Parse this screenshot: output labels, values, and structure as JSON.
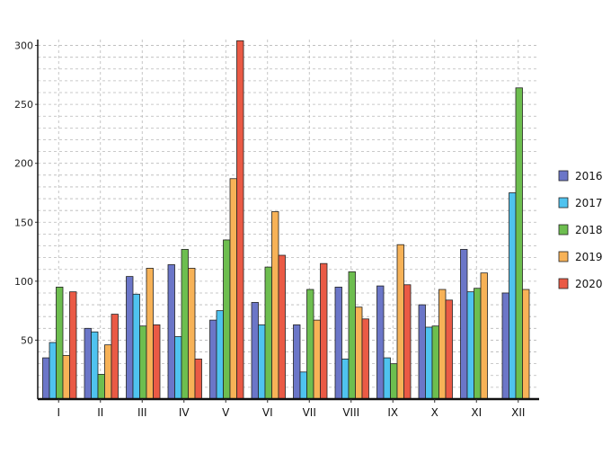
{
  "chart_data": {
    "type": "bar",
    "title": "",
    "xlabel": "",
    "ylabel": "",
    "ylim": [
      0,
      305
    ],
    "yticks": [
      50,
      100,
      150,
      200,
      250,
      300
    ],
    "grid": true,
    "legend_position": "right",
    "categories": [
      "I",
      "II",
      "III",
      "IV",
      "V",
      "VI",
      "VII",
      "VIII",
      "IX",
      "X",
      "XI",
      "XII"
    ],
    "series": [
      {
        "name": "2016",
        "color": "#6b76c8",
        "values": [
          35,
          60,
          104,
          114,
          67,
          82,
          63,
          95,
          96,
          80,
          127,
          90
        ]
      },
      {
        "name": "2017",
        "color": "#4fc3ef",
        "values": [
          48,
          57,
          89,
          53,
          75,
          63,
          23,
          34,
          35,
          61,
          91,
          175
        ]
      },
      {
        "name": "2018",
        "color": "#6dbe4f",
        "values": [
          95,
          21,
          62,
          127,
          135,
          112,
          93,
          108,
          30,
          62,
          94,
          264
        ]
      },
      {
        "name": "2019",
        "color": "#f7b257",
        "values": [
          37,
          46,
          111,
          111,
          187,
          159,
          67,
          78,
          131,
          93,
          107,
          93
        ]
      },
      {
        "name": "2020",
        "color": "#ea5a45",
        "values": [
          91,
          72,
          63,
          34,
          304,
          122,
          115,
          68,
          97,
          84,
          0,
          0
        ]
      }
    ]
  }
}
